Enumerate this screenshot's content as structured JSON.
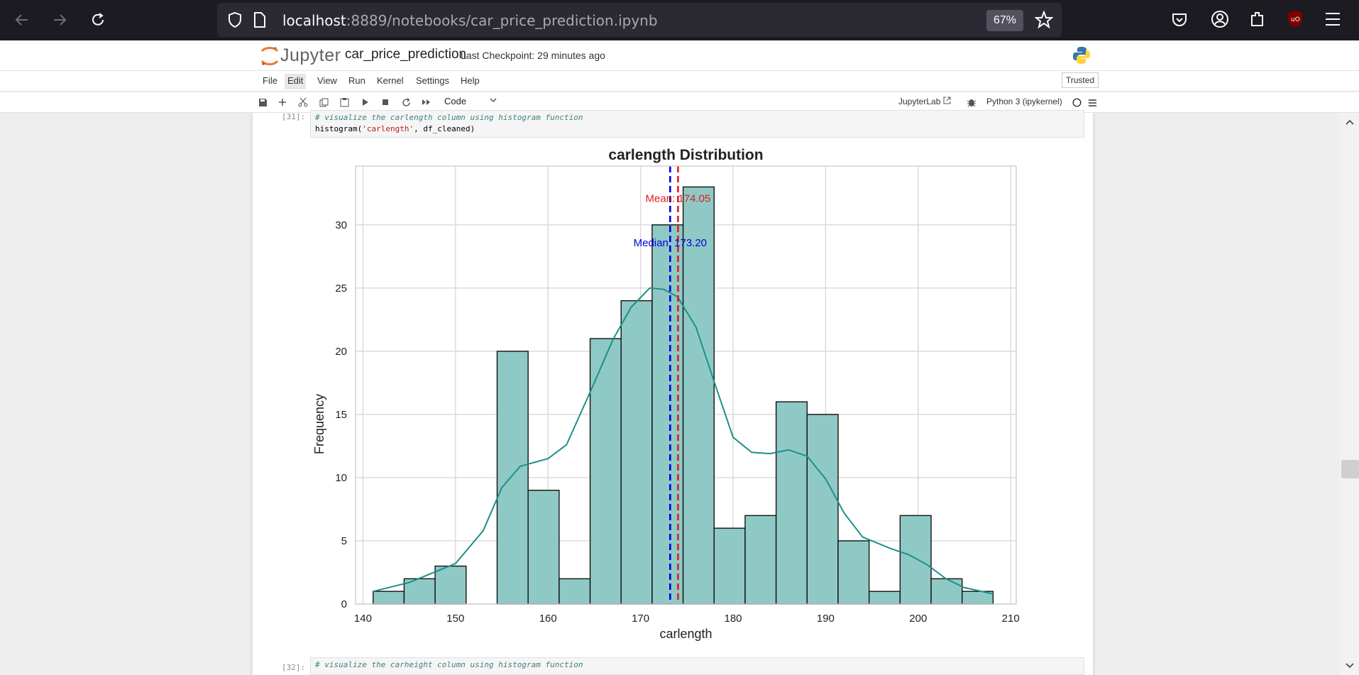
{
  "browser": {
    "url_host": "localhost",
    "url_path": ":8889/notebooks/car_price_prediction.ipynb",
    "zoom": "67%"
  },
  "jupyter": {
    "logo_text": "Jupyter",
    "notebook_title": "car_price_prediction",
    "checkpoint": "Last Checkpoint: 29 minutes ago",
    "trusted": "Trusted",
    "menu": [
      "File",
      "Edit",
      "View",
      "Run",
      "Kernel",
      "Settings",
      "Help"
    ],
    "cell_type": "Code",
    "jupyterlab_link": "JupyterLab",
    "kernel": "Python 3 (ipykernel)"
  },
  "cells": {
    "cell31": {
      "prompt": "[31]:",
      "comment": "# visualize the carlength column using histogram function",
      "code_fn": "histogram(",
      "code_str": "'carlength'",
      "code_rest": ", df_cleaned)"
    },
    "cell32": {
      "prompt": "[32]:",
      "comment": "# visualize the carheight column using histogram function"
    }
  },
  "chart_data": {
    "type": "bar",
    "title": "carlength Distribution",
    "xlabel": "carlength",
    "ylabel": "Frequency",
    "xlim": [
      139.2,
      210.6
    ],
    "ylim": [
      0,
      34.65
    ],
    "xticks": [
      140,
      150,
      160,
      170,
      180,
      190,
      200,
      210
    ],
    "yticks": [
      0,
      5,
      10,
      15,
      20,
      25,
      30
    ],
    "grid": true,
    "bin_edges": [
      141.1,
      144.45,
      147.8,
      151.15,
      154.5,
      157.85,
      161.2,
      164.55,
      167.9,
      171.25,
      174.6,
      177.95,
      181.3,
      184.65,
      188.0,
      191.35,
      194.7,
      198.05,
      201.4,
      204.75,
      208.1
    ],
    "counts": [
      1,
      2,
      3,
      0,
      20,
      9,
      2,
      21,
      24,
      30,
      33,
      6,
      7,
      16,
      15,
      5,
      1,
      7,
      2,
      1
    ],
    "bar_color": "#8fc9c6",
    "kde_color": "#1f8f8a",
    "kde_points": [
      [
        141.1,
        1.0
      ],
      [
        145,
        1.7
      ],
      [
        150,
        3.2
      ],
      [
        153,
        5.8
      ],
      [
        155,
        9.2
      ],
      [
        157,
        10.9
      ],
      [
        160,
        11.5
      ],
      [
        162,
        12.6
      ],
      [
        165,
        17.5
      ],
      [
        167,
        20.9
      ],
      [
        169,
        23.5
      ],
      [
        171,
        25.0
      ],
      [
        172.5,
        24.9
      ],
      [
        174,
        24.3
      ],
      [
        176,
        21.9
      ],
      [
        178,
        17.5
      ],
      [
        180,
        13.2
      ],
      [
        182,
        12.0
      ],
      [
        184,
        11.9
      ],
      [
        186,
        12.2
      ],
      [
        188,
        11.7
      ],
      [
        190,
        9.9
      ],
      [
        192,
        7.2
      ],
      [
        194,
        5.3
      ],
      [
        197,
        4.4
      ],
      [
        199,
        3.9
      ],
      [
        201,
        3.1
      ],
      [
        203,
        2.0
      ],
      [
        205,
        1.3
      ],
      [
        208.1,
        0.8
      ]
    ],
    "mean": {
      "value": 174.05,
      "label": "Mean: 174.05",
      "color": "#e41a1c"
    },
    "median": {
      "value": 173.2,
      "label": "Median: 173.20",
      "color": "#0000dd"
    }
  }
}
